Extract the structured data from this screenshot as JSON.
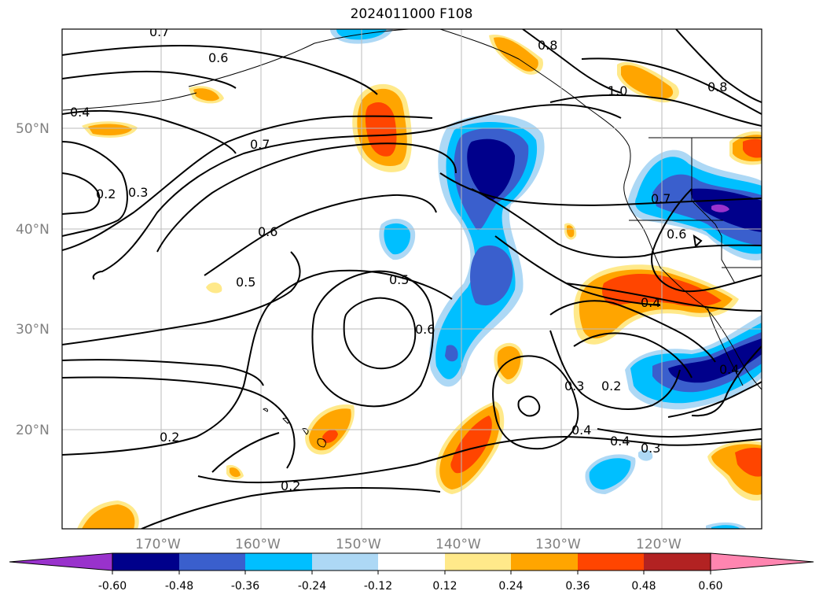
{
  "title": "2024011000 F108",
  "map": {
    "lat_labels": [
      "50°N",
      "40°N",
      "30°N",
      "20°N"
    ],
    "lon_labels": [
      "170°W",
      "160°W",
      "150°W",
      "140°W",
      "130°W",
      "120°W"
    ],
    "contour_labels": [
      "0.7",
      "0.6",
      "0.8",
      "1.0",
      "0.8",
      "0.4",
      "0.7",
      "0.2",
      "0.3",
      "0.6",
      "0.5",
      "0.5",
      "0.6",
      "0.7",
      "0.6",
      "0.4",
      "0.3",
      "0.2",
      "0.4",
      "0.4",
      "0.3",
      "0.2",
      "0.2",
      "0.4"
    ],
    "colors": {
      "neg_060_plus": "#9932cc",
      "neg_048": "#00008b",
      "neg_036": "#3a5fcd",
      "neg_024": "#00bfff",
      "neg_012": "#add8f5",
      "zero": "#ffffff",
      "pos_012": "#ffe98a",
      "pos_024": "#ffa500",
      "pos_036": "#ff4500",
      "pos_048": "#b22222",
      "pos_060_plus": "#ff85b0"
    }
  },
  "colorbar": {
    "ticks": [
      "-0.60",
      "-0.48",
      "-0.36",
      "-0.24",
      "-0.12",
      "0.12",
      "0.24",
      "0.36",
      "0.48",
      "0.60"
    ],
    "colors": [
      "#9932cc",
      "#00008b",
      "#3a5fcd",
      "#00bfff",
      "#add8f5",
      "#ffffff",
      "#ffe98a",
      "#ffa500",
      "#ff4500",
      "#b22222",
      "#ff85b0"
    ]
  }
}
